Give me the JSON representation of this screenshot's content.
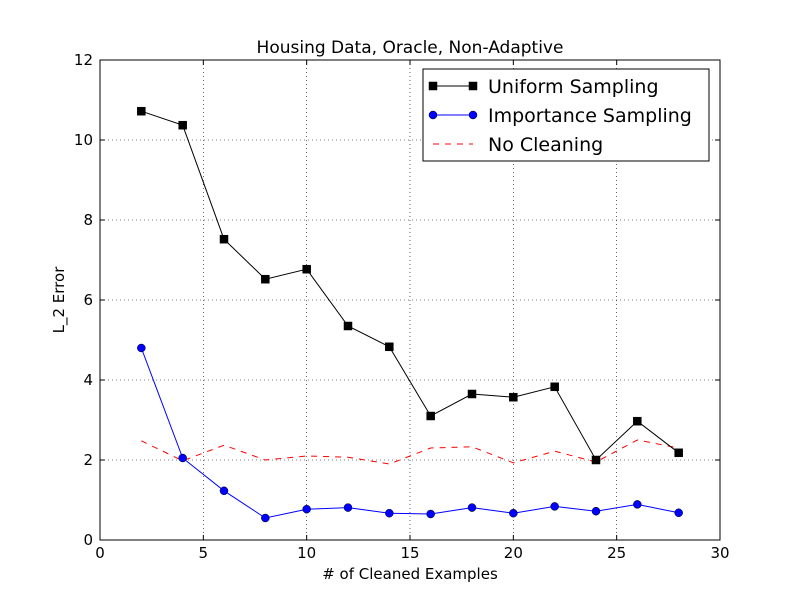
{
  "chart_data": {
    "type": "line",
    "title": "Housing Data, Oracle, Non-Adaptive",
    "xlabel": "# of Cleaned Examples",
    "ylabel": "L_2 Error",
    "xlim": [
      0,
      30
    ],
    "ylim": [
      0,
      12
    ],
    "xticks": [
      0,
      5,
      10,
      15,
      20,
      25,
      30
    ],
    "yticks": [
      0,
      2,
      4,
      6,
      8,
      10,
      12
    ],
    "grid": true,
    "legend_position": "top-right",
    "x": [
      2,
      4,
      6,
      8,
      10,
      12,
      14,
      16,
      18,
      20,
      22,
      24,
      26,
      28
    ],
    "series": [
      {
        "name": "Uniform Sampling",
        "color": "#000000",
        "marker": "square",
        "linestyle": "solid",
        "values": [
          10.72,
          10.37,
          7.52,
          6.52,
          6.77,
          5.35,
          4.83,
          3.1,
          3.65,
          3.57,
          3.83,
          2.0,
          2.97,
          2.18
        ]
      },
      {
        "name": "Importance Sampling",
        "color": "#0000ff",
        "marker": "circle",
        "linestyle": "solid",
        "values": [
          4.8,
          2.05,
          1.23,
          0.55,
          0.77,
          0.81,
          0.67,
          0.65,
          0.81,
          0.67,
          0.84,
          0.72,
          0.89,
          0.68
        ]
      },
      {
        "name": "No Cleaning",
        "color": "#ff0000",
        "marker": "none",
        "linestyle": "dashed",
        "values": [
          2.48,
          1.98,
          2.37,
          2.0,
          2.1,
          2.07,
          1.9,
          2.3,
          2.33,
          1.93,
          2.22,
          1.95,
          2.5,
          2.3
        ]
      }
    ]
  }
}
